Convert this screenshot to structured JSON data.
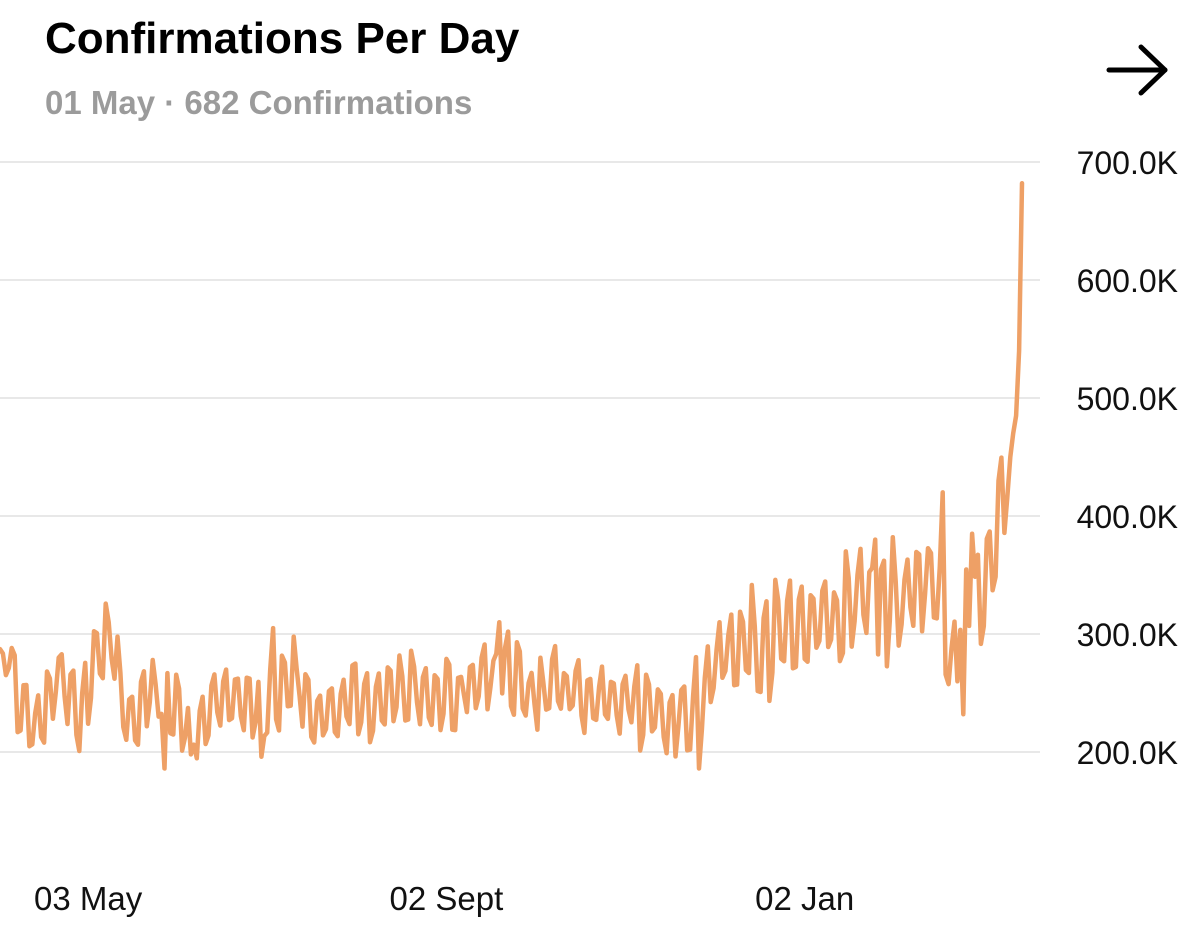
{
  "header": {
    "title": "Confirmations Per Day",
    "subtitle": "01 May · 682 Confirmations"
  },
  "colors": {
    "line": "#eea066",
    "grid": "#e8e8e8",
    "subtitle": "#9b9b9b"
  },
  "icons": {
    "next": "arrow-right-icon"
  },
  "chart_data": {
    "type": "line",
    "title": "Confirmations Per Day",
    "xlabel": "",
    "ylabel": "",
    "ylim": [
      130000,
      720000
    ],
    "yticks": [
      200000,
      300000,
      400000,
      500000,
      600000,
      700000
    ],
    "ytick_labels": [
      "200.0K",
      "300.0K",
      "400.0K",
      "500.0K",
      "600.0K",
      "700.0K"
    ],
    "y_axis_position": "right",
    "grid": true,
    "x_tick_labels": [
      {
        "day": 30,
        "label": "03 May"
      },
      {
        "day": 152,
        "label": "02 Sept"
      },
      {
        "day": 274,
        "label": "02 Jan"
      }
    ],
    "series": [
      {
        "name": "Confirmations",
        "anchors": [
          [
            0,
            265000
          ],
          [
            2,
            285000
          ],
          [
            6,
            250000
          ],
          [
            12,
            220000
          ],
          [
            20,
            265000
          ],
          [
            27,
            230000
          ],
          [
            32,
            275000
          ],
          [
            37,
            310000
          ],
          [
            44,
            215000
          ],
          [
            52,
            255000
          ],
          [
            65,
            225000
          ],
          [
            78,
            250000
          ],
          [
            90,
            230000
          ],
          [
            100,
            265000
          ],
          [
            110,
            225000
          ],
          [
            120,
            255000
          ],
          [
            130,
            240000
          ],
          [
            140,
            255000
          ],
          [
            150,
            240000
          ],
          [
            160,
            260000
          ],
          [
            170,
            270000
          ],
          [
            180,
            245000
          ],
          [
            190,
            260000
          ],
          [
            200,
            240000
          ],
          [
            212,
            245000
          ],
          [
            222,
            230000
          ],
          [
            230,
            225000
          ],
          [
            238,
            250000
          ],
          [
            246,
            280000
          ],
          [
            252,
            295000
          ],
          [
            258,
            290000
          ],
          [
            266,
            300000
          ],
          [
            272,
            305000
          ],
          [
            280,
            320000
          ],
          [
            286,
            305000
          ],
          [
            292,
            340000
          ],
          [
            298,
            315000
          ],
          [
            304,
            330000
          ],
          [
            310,
            335000
          ],
          [
            316,
            350000
          ],
          [
            321,
            320000
          ],
          [
            324,
            275000
          ],
          [
            328,
            330000
          ],
          [
            333,
            335000
          ],
          [
            337,
            350000
          ],
          [
            340,
            395000
          ],
          [
            343,
            430000
          ],
          [
            345,
            470000
          ],
          [
            346,
            485000
          ],
          [
            347,
            540000
          ],
          [
            348,
            682000
          ]
        ],
        "spikes": [
          [
            37,
            310000
          ],
          [
            56,
            186000
          ],
          [
            65,
            198000
          ],
          [
            89,
            196000
          ],
          [
            93,
            305000
          ],
          [
            170,
            310000
          ],
          [
            173,
            302000
          ],
          [
            235,
            202000
          ],
          [
            238,
            186000
          ],
          [
            245,
            310000
          ],
          [
            288,
            370000
          ],
          [
            298,
            380000
          ],
          [
            321,
            420000
          ],
          [
            328,
            232000
          ],
          [
            331,
            385000
          ],
          [
            340,
            430000
          ]
        ]
      }
    ]
  }
}
